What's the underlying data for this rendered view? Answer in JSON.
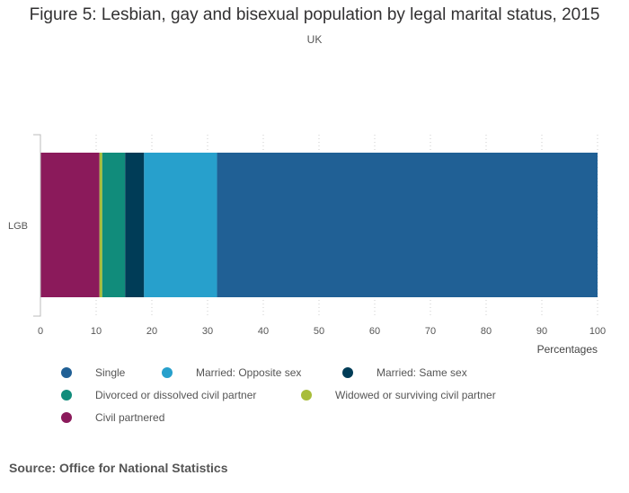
{
  "chart_data": {
    "type": "bar",
    "orientation": "horizontal",
    "stacked": true,
    "title": "Figure 5: Lesbian, gay and bisexual population by legal marital status, 2015",
    "subtitle": "UK",
    "categories": [
      "LGB"
    ],
    "xlabel": "Percentages",
    "ylabel": "",
    "xlim": [
      0,
      100
    ],
    "xticks": [
      0,
      10,
      20,
      30,
      40,
      50,
      60,
      70,
      80,
      90,
      100
    ],
    "grid": true,
    "series": [
      {
        "name": "Civil partnered",
        "color": "#8b1a5b",
        "values": [
          10.6
        ]
      },
      {
        "name": "Widowed or surviving civil partner",
        "color": "#a8bd3a",
        "values": [
          0.5
        ]
      },
      {
        "name": "Divorced or dissolved civil partner",
        "color": "#118c7b",
        "values": [
          4.1
        ]
      },
      {
        "name": "Married: Same sex",
        "color": "#003c57",
        "values": [
          3.4
        ]
      },
      {
        "name": "Married: Opposite sex",
        "color": "#27a0cc",
        "values": [
          13.1
        ]
      },
      {
        "name": "Single",
        "color": "#206095",
        "values": [
          68.3
        ]
      }
    ],
    "legend": [
      {
        "name": "Single",
        "color": "#206095"
      },
      {
        "name": "Married: Opposite sex",
        "color": "#27a0cc"
      },
      {
        "name": "Married: Same sex",
        "color": "#003c57"
      },
      {
        "name": "Divorced or dissolved civil partner",
        "color": "#118c7b"
      },
      {
        "name": "Widowed or surviving civil partner",
        "color": "#a8bd3a"
      },
      {
        "name": "Civil partnered",
        "color": "#8b1a5b"
      }
    ],
    "legend_placement": "bottom"
  },
  "source": "Source: Office for National Statistics"
}
